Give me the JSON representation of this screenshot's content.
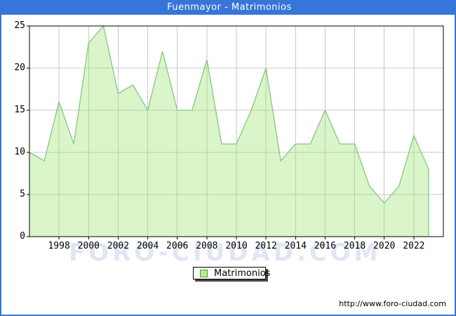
{
  "header": {
    "title": "Fuenmayor - Matrimonios"
  },
  "legend": {
    "label": "Matrimonios",
    "position": "bottom-center"
  },
  "watermark": {
    "text": "FORO-CIUDAD.COM"
  },
  "footer": {
    "url": "http://www.foro-ciudad.com"
  },
  "colors": {
    "frame_blue": "#3775D9",
    "title_text": "#ffffff",
    "plot_border": "#000000",
    "grid": "#C8C8C8",
    "area_fill": "rgba(150,225,100,0.35)",
    "line": "#82C882",
    "legend_swatch_fill": "#B9EC8C",
    "legend_swatch_border": "#4E9A3E",
    "watermark": "#E0E6F4"
  },
  "chart_data": {
    "type": "area",
    "title": "Fuenmayor - Matrimonios",
    "xlabel": "",
    "ylabel": "",
    "x": [
      1996,
      1997,
      1998,
      1999,
      2000,
      2001,
      2002,
      2003,
      2004,
      2005,
      2006,
      2007,
      2008,
      2009,
      2010,
      2011,
      2012,
      2013,
      2014,
      2015,
      2016,
      2017,
      2018,
      2019,
      2020,
      2021,
      2022,
      2023
    ],
    "series": [
      {
        "name": "Matrimonios",
        "values": [
          10,
          9,
          16,
          11,
          23,
          25,
          17,
          18,
          15,
          22,
          15,
          15,
          21,
          11,
          11,
          15,
          20,
          9,
          11,
          11,
          15,
          11,
          11,
          6,
          4,
          6,
          12,
          8
        ]
      }
    ],
    "x_tick_labels": [
      "1998",
      "2000",
      "2002",
      "2004",
      "2006",
      "2008",
      "2010",
      "2012",
      "2014",
      "2016",
      "2018",
      "2020",
      "2022"
    ],
    "y_ticks": [
      0,
      5,
      10,
      15,
      20,
      25
    ],
    "xlim": [
      1996,
      2024
    ],
    "ylim": [
      0,
      25
    ],
    "grid": true,
    "legend_position": "bottom-center"
  }
}
